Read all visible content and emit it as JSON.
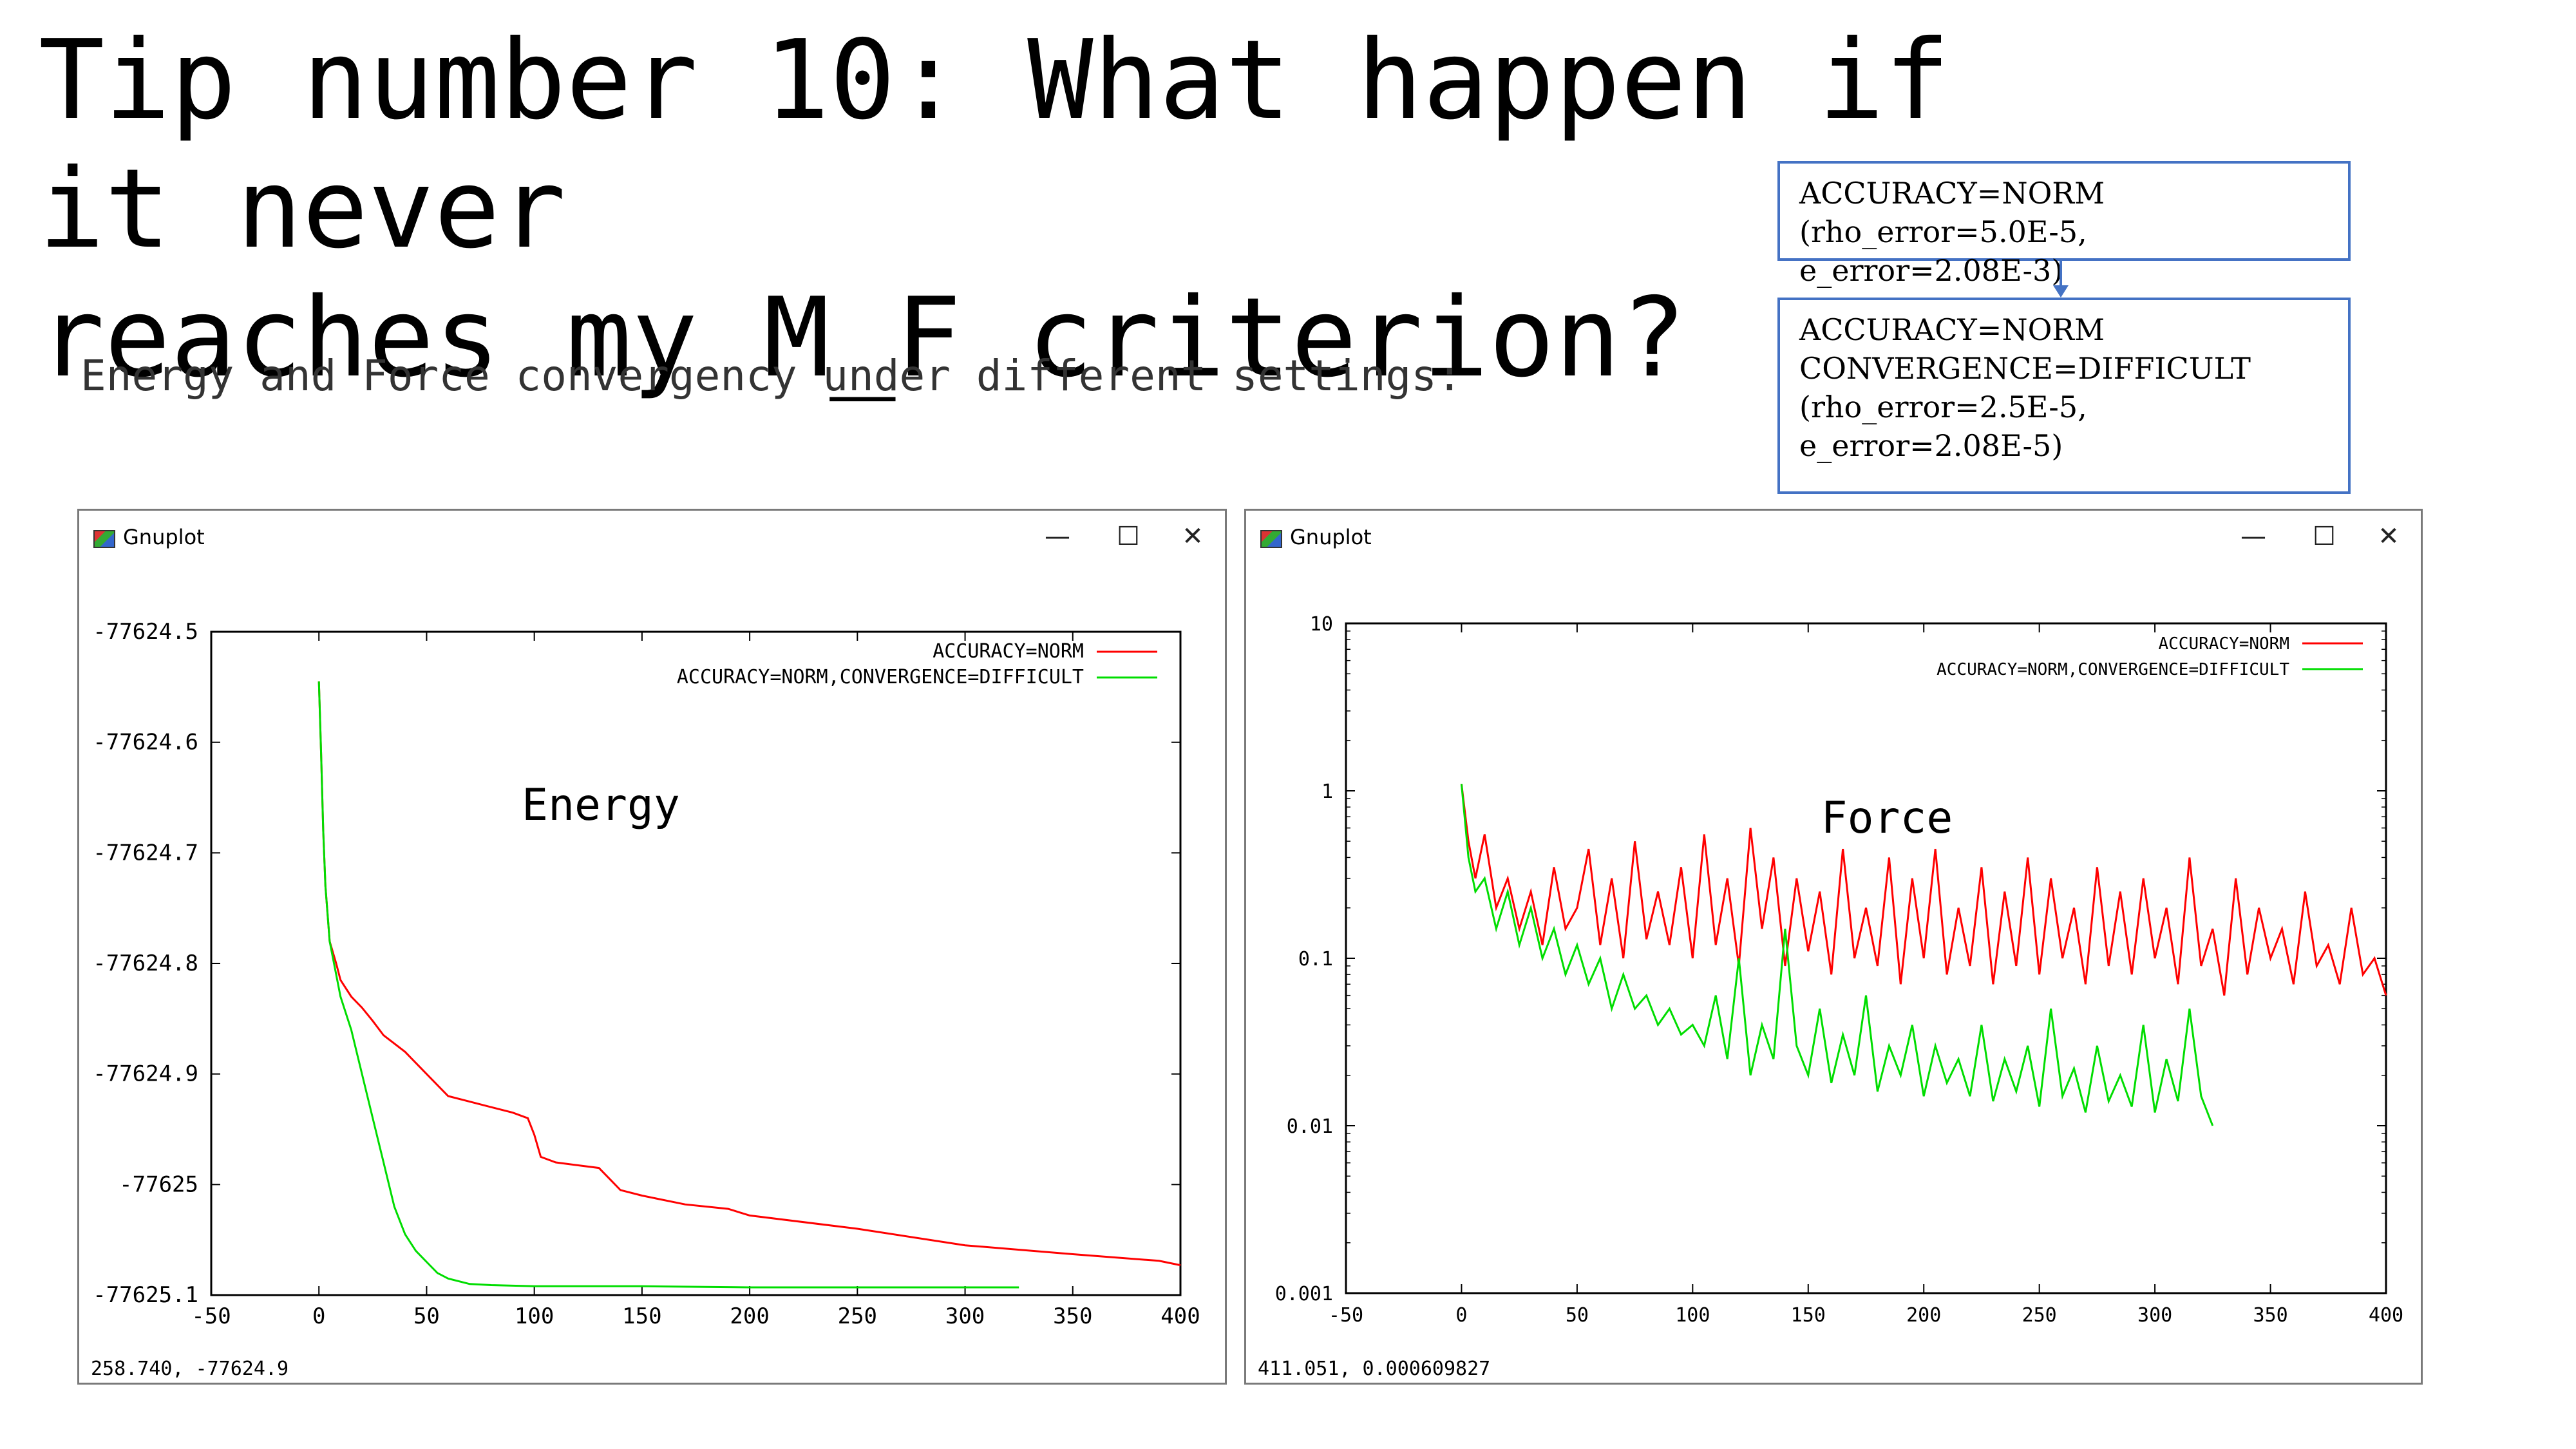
{
  "slide": {
    "title_line1": "Tip number 10: What happen if it never",
    "title_line2": "reaches my M_F criterion?",
    "subtitle": "Energy and Force convergency under different settings:"
  },
  "settings_boxes": [
    {
      "lines": [
        "ACCURACY=NORM",
        "(rho_error=5.0E-5, e_error=2.08E-3)"
      ]
    },
    {
      "lines": [
        "ACCURACY=NORM",
        "CONVERGENCE=DIFFICULT",
        "(rho_error=2.5E-5, e_error=2.08E-5)"
      ]
    }
  ],
  "windows": [
    {
      "title": "Gnuplot",
      "status": "258.740, -77624.9"
    },
    {
      "title": "Gnuplot",
      "status": "411.051,  0.000609827"
    }
  ],
  "window_controls": {
    "minimize": "—",
    "maximize": "☐",
    "close": "✕"
  },
  "colors": {
    "norm": "#ff0000",
    "difficult": "#00dd00",
    "box_border": "#4472c4"
  },
  "chart_data": [
    {
      "type": "line",
      "annotation": "Energy",
      "xlabel": "",
      "ylabel": "",
      "xlim": [
        -50,
        400
      ],
      "ylim": [
        -77625.1,
        -77624.5
      ],
      "log_y": false,
      "grid": false,
      "legend_position": "top-right",
      "x_ticks": [
        -50,
        0,
        50,
        100,
        150,
        200,
        250,
        300,
        350,
        400
      ],
      "y_ticks": [
        -77624.5,
        -77624.6,
        -77624.7,
        -77624.8,
        -77624.9,
        -77625,
        -77625.1
      ],
      "y_tick_labels": [
        "-77624.5",
        "-77624.6",
        "-77624.7",
        "-77624.8",
        "-77624.9",
        "-77625",
        "-77625.1"
      ],
      "series": [
        {
          "name": "ACCURACY=NORM",
          "color": "#ff0000",
          "x": [
            0,
            1,
            2,
            3,
            5,
            8,
            10,
            15,
            20,
            25,
            30,
            40,
            50,
            60,
            70,
            80,
            90,
            97,
            100,
            103,
            110,
            130,
            135,
            140,
            150,
            170,
            190,
            200,
            250,
            300,
            350,
            390,
            400
          ],
          "y": [
            -77624.545,
            -77624.61,
            -77624.68,
            -77624.73,
            -77624.78,
            -77624.8,
            -77624.815,
            -77624.83,
            -77624.84,
            -77624.852,
            -77624.865,
            -77624.88,
            -77624.9,
            -77624.92,
            -77624.925,
            -77624.93,
            -77624.935,
            -77624.94,
            -77624.955,
            -77624.975,
            -77624.98,
            -77624.985,
            -77624.995,
            -77625.005,
            -77625.01,
            -77625.018,
            -77625.022,
            -77625.028,
            -77625.04,
            -77625.055,
            -77625.063,
            -77625.069,
            -77625.073
          ]
        },
        {
          "name": "ACCURACY=NORM,CONVERGENCE=DIFFICULT",
          "color": "#00dd00",
          "x": [
            0,
            1,
            2,
            3,
            5,
            8,
            10,
            15,
            20,
            25,
            30,
            35,
            40,
            45,
            50,
            55,
            60,
            70,
            80,
            100,
            150,
            200,
            250,
            300,
            325
          ],
          "y": [
            -77624.545,
            -77624.61,
            -77624.68,
            -77624.73,
            -77624.78,
            -77624.81,
            -77624.83,
            -77624.86,
            -77624.9,
            -77624.94,
            -77624.98,
            -77625.02,
            -77625.045,
            -77625.06,
            -77625.07,
            -77625.08,
            -77625.085,
            -77625.09,
            -77625.091,
            -77625.092,
            -77625.092,
            -77625.093,
            -77625.093,
            -77625.093,
            -77625.093
          ]
        }
      ]
    },
    {
      "type": "line",
      "annotation": "Force",
      "xlabel": "",
      "ylabel": "",
      "xlim": [
        -50,
        400
      ],
      "ylim": [
        0.001,
        10
      ],
      "log_y": true,
      "grid": false,
      "legend_position": "top-right",
      "x_ticks": [
        -50,
        0,
        50,
        100,
        150,
        200,
        250,
        300,
        350,
        400
      ],
      "y_ticks": [
        10,
        1,
        0.1,
        0.01,
        0.001
      ],
      "y_tick_labels": [
        "10",
        "1",
        "0.1",
        "0.01",
        "0.001"
      ],
      "series": [
        {
          "name": "ACCURACY=NORM",
          "color": "#ff0000",
          "x": [
            0,
            3,
            6,
            10,
            15,
            20,
            25,
            30,
            35,
            40,
            45,
            50,
            55,
            60,
            65,
            70,
            75,
            80,
            85,
            90,
            95,
            100,
            105,
            110,
            115,
            120,
            125,
            130,
            135,
            140,
            145,
            150,
            155,
            160,
            165,
            170,
            175,
            180,
            185,
            190,
            195,
            200,
            205,
            210,
            215,
            220,
            225,
            230,
            235,
            240,
            245,
            250,
            255,
            260,
            265,
            270,
            275,
            280,
            285,
            290,
            295,
            300,
            305,
            310,
            315,
            320,
            325,
            330,
            335,
            340,
            345,
            350,
            355,
            360,
            365,
            370,
            375,
            380,
            385,
            390,
            395,
            400
          ],
          "y": [
            1.1,
            0.5,
            0.3,
            0.55,
            0.2,
            0.3,
            0.15,
            0.25,
            0.12,
            0.35,
            0.15,
            0.2,
            0.45,
            0.12,
            0.3,
            0.1,
            0.5,
            0.13,
            0.25,
            0.12,
            0.35,
            0.1,
            0.55,
            0.12,
            0.3,
            0.09,
            0.6,
            0.15,
            0.4,
            0.09,
            0.3,
            0.11,
            0.25,
            0.08,
            0.45,
            0.1,
            0.2,
            0.09,
            0.4,
            0.07,
            0.3,
            0.1,
            0.45,
            0.08,
            0.2,
            0.09,
            0.35,
            0.07,
            0.25,
            0.09,
            0.4,
            0.08,
            0.3,
            0.1,
            0.2,
            0.07,
            0.35,
            0.09,
            0.25,
            0.08,
            0.3,
            0.1,
            0.2,
            0.07,
            0.4,
            0.09,
            0.15,
            0.06,
            0.3,
            0.08,
            0.2,
            0.1,
            0.15,
            0.07,
            0.25,
            0.09,
            0.12,
            0.07,
            0.2,
            0.08,
            0.1,
            0.06
          ]
        },
        {
          "name": "ACCURACY=NORM,CONVERGENCE=DIFFICULT",
          "color": "#00dd00",
          "x": [
            0,
            3,
            6,
            10,
            15,
            20,
            25,
            30,
            35,
            40,
            45,
            50,
            55,
            60,
            65,
            70,
            75,
            80,
            85,
            90,
            95,
            100,
            105,
            110,
            115,
            120,
            125,
            130,
            135,
            140,
            145,
            150,
            155,
            160,
            165,
            170,
            175,
            180,
            185,
            190,
            195,
            200,
            205,
            210,
            215,
            220,
            225,
            230,
            235,
            240,
            245,
            250,
            255,
            260,
            265,
            270,
            275,
            280,
            285,
            290,
            295,
            300,
            305,
            310,
            315,
            320,
            325
          ],
          "y": [
            1.1,
            0.4,
            0.25,
            0.3,
            0.15,
            0.25,
            0.12,
            0.2,
            0.1,
            0.15,
            0.08,
            0.12,
            0.07,
            0.1,
            0.05,
            0.08,
            0.05,
            0.06,
            0.04,
            0.05,
            0.035,
            0.04,
            0.03,
            0.06,
            0.025,
            0.1,
            0.02,
            0.04,
            0.025,
            0.15,
            0.03,
            0.02,
            0.05,
            0.018,
            0.035,
            0.02,
            0.06,
            0.016,
            0.03,
            0.02,
            0.04,
            0.015,
            0.03,
            0.018,
            0.025,
            0.015,
            0.04,
            0.014,
            0.025,
            0.016,
            0.03,
            0.013,
            0.05,
            0.015,
            0.022,
            0.012,
            0.03,
            0.014,
            0.02,
            0.013,
            0.04,
            0.012,
            0.025,
            0.014,
            0.05,
            0.015,
            0.01
          ]
        }
      ]
    }
  ]
}
